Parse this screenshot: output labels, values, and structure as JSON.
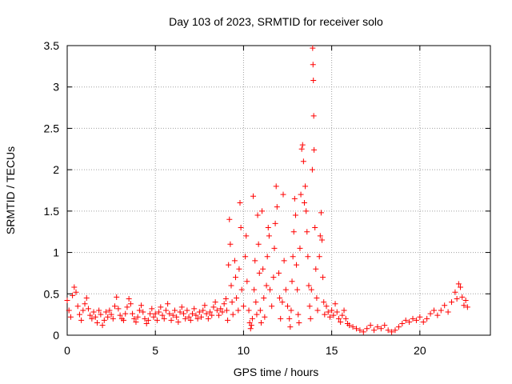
{
  "chart_data": {
    "type": "scatter",
    "title": "Day 103 of 2023, SRMTID for receiver solo",
    "xlabel": "GPS time / hours",
    "ylabel": "SRMTID / TECUs",
    "xlim": [
      0,
      24
    ],
    "ylim": [
      0,
      3.5
    ],
    "xticks": [
      0,
      5,
      10,
      15,
      20
    ],
    "xtick_labels": [
      "0",
      "5",
      "10",
      "15",
      "20"
    ],
    "yticks": [
      0,
      0.5,
      1,
      1.5,
      2,
      2.5,
      3,
      3.5
    ],
    "ytick_labels": [
      "0",
      "0.5",
      "1",
      "1.5",
      "2",
      "2.5",
      "3",
      "3.5"
    ],
    "grid": true,
    "marker": "+",
    "color": "#ff0000",
    "series": [
      {
        "name": "SRMTID",
        "points": [
          [
            0.0,
            0.42
          ],
          [
            0.1,
            0.3
          ],
          [
            0.2,
            0.22
          ],
          [
            0.3,
            0.48
          ],
          [
            0.4,
            0.58
          ],
          [
            0.5,
            0.52
          ],
          [
            0.6,
            0.35
          ],
          [
            0.7,
            0.25
          ],
          [
            0.8,
            0.18
          ],
          [
            0.9,
            0.3
          ],
          [
            1.0,
            0.38
          ],
          [
            1.1,
            0.45
          ],
          [
            1.2,
            0.32
          ],
          [
            1.3,
            0.24
          ],
          [
            1.4,
            0.2
          ],
          [
            1.5,
            0.28
          ],
          [
            1.6,
            0.22
          ],
          [
            1.7,
            0.15
          ],
          [
            1.8,
            0.3
          ],
          [
            1.9,
            0.25
          ],
          [
            2.0,
            0.12
          ],
          [
            2.1,
            0.18
          ],
          [
            2.2,
            0.28
          ],
          [
            2.3,
            0.22
          ],
          [
            2.4,
            0.3
          ],
          [
            2.5,
            0.25
          ],
          [
            2.6,
            0.2
          ],
          [
            2.7,
            0.35
          ],
          [
            2.8,
            0.46
          ],
          [
            2.9,
            0.32
          ],
          [
            3.0,
            0.24
          ],
          [
            3.1,
            0.2
          ],
          [
            3.2,
            0.18
          ],
          [
            3.3,
            0.26
          ],
          [
            3.4,
            0.34
          ],
          [
            3.5,
            0.44
          ],
          [
            3.6,
            0.38
          ],
          [
            3.7,
            0.26
          ],
          [
            3.8,
            0.2
          ],
          [
            3.9,
            0.16
          ],
          [
            4.0,
            0.22
          ],
          [
            4.1,
            0.3
          ],
          [
            4.2,
            0.36
          ],
          [
            4.3,
            0.28
          ],
          [
            4.4,
            0.2
          ],
          [
            4.5,
            0.14
          ],
          [
            4.6,
            0.18
          ],
          [
            4.7,
            0.26
          ],
          [
            4.8,
            0.32
          ],
          [
            4.9,
            0.22
          ],
          [
            5.0,
            0.26
          ],
          [
            5.1,
            0.18
          ],
          [
            5.2,
            0.28
          ],
          [
            5.3,
            0.34
          ],
          [
            5.4,
            0.24
          ],
          [
            5.5,
            0.2
          ],
          [
            5.6,
            0.3
          ],
          [
            5.7,
            0.38
          ],
          [
            5.8,
            0.26
          ],
          [
            5.9,
            0.18
          ],
          [
            6.0,
            0.24
          ],
          [
            6.1,
            0.3
          ],
          [
            6.2,
            0.22
          ],
          [
            6.3,
            0.16
          ],
          [
            6.4,
            0.28
          ],
          [
            6.5,
            0.34
          ],
          [
            6.6,
            0.26
          ],
          [
            6.7,
            0.2
          ],
          [
            6.8,
            0.3
          ],
          [
            6.9,
            0.22
          ],
          [
            7.0,
            0.18
          ],
          [
            7.1,
            0.26
          ],
          [
            7.2,
            0.32
          ],
          [
            7.3,
            0.24
          ],
          [
            7.4,
            0.2
          ],
          [
            7.5,
            0.28
          ],
          [
            7.6,
            0.22
          ],
          [
            7.7,
            0.3
          ],
          [
            7.8,
            0.36
          ],
          [
            7.9,
            0.26
          ],
          [
            8.0,
            0.2
          ],
          [
            8.1,
            0.28
          ],
          [
            8.2,
            0.24
          ],
          [
            8.3,
            0.34
          ],
          [
            8.4,
            0.4
          ],
          [
            8.5,
            0.3
          ],
          [
            8.6,
            0.24
          ],
          [
            8.7,
            0.32
          ],
          [
            8.8,
            0.28
          ],
          [
            8.9,
            0.38
          ],
          [
            9.0,
            0.44
          ],
          [
            9.05,
            0.3
          ],
          [
            9.1,
            0.18
          ],
          [
            9.15,
            0.85
          ],
          [
            9.2,
            1.4
          ],
          [
            9.25,
            1.1
          ],
          [
            9.3,
            0.6
          ],
          [
            9.35,
            0.4
          ],
          [
            9.4,
            0.25
          ],
          [
            9.5,
            0.9
          ],
          [
            9.55,
            0.7
          ],
          [
            9.6,
            0.45
          ],
          [
            9.7,
            0.3
          ],
          [
            9.75,
            0.8
          ],
          [
            9.8,
            1.6
          ],
          [
            9.85,
            1.3
          ],
          [
            9.9,
            0.55
          ],
          [
            10.0,
            0.35
          ],
          [
            10.1,
            0.95
          ],
          [
            10.15,
            1.2
          ],
          [
            10.2,
            0.65
          ],
          [
            10.3,
            0.3
          ],
          [
            10.35,
            0.15
          ],
          [
            10.4,
            0.08
          ],
          [
            10.45,
            0.12
          ],
          [
            10.5,
            0.2
          ],
          [
            10.55,
            1.68
          ],
          [
            10.6,
            0.55
          ],
          [
            10.65,
            0.9
          ],
          [
            10.7,
            0.4
          ],
          [
            10.75,
            0.25
          ],
          [
            10.8,
            1.45
          ],
          [
            10.85,
            1.1
          ],
          [
            10.9,
            0.75
          ],
          [
            10.95,
            0.3
          ],
          [
            11.0,
            0.15
          ],
          [
            11.05,
            1.5
          ],
          [
            11.1,
            0.8
          ],
          [
            11.15,
            0.45
          ],
          [
            11.2,
            0.22
          ],
          [
            11.3,
            0.6
          ],
          [
            11.35,
            0.95
          ],
          [
            11.4,
            1.3
          ],
          [
            11.45,
            1.2
          ],
          [
            11.5,
            0.55
          ],
          [
            11.6,
            0.35
          ],
          [
            11.7,
            0.7
          ],
          [
            11.75,
            1.05
          ],
          [
            11.8,
            1.35
          ],
          [
            11.85,
            1.8
          ],
          [
            11.9,
            1.55
          ],
          [
            12.0,
            0.75
          ],
          [
            12.05,
            0.45
          ],
          [
            12.1,
            0.2
          ],
          [
            12.2,
            0.4
          ],
          [
            12.25,
            1.7
          ],
          [
            12.3,
            0.9
          ],
          [
            12.4,
            0.55
          ],
          [
            12.5,
            0.35
          ],
          [
            12.6,
            0.2
          ],
          [
            12.65,
            0.1
          ],
          [
            12.7,
            0.3
          ],
          [
            12.75,
            0.65
          ],
          [
            12.8,
            0.95
          ],
          [
            12.85,
            1.25
          ],
          [
            12.9,
            1.65
          ],
          [
            12.95,
            1.45
          ],
          [
            13.0,
            0.85
          ],
          [
            13.05,
            0.55
          ],
          [
            13.1,
            0.25
          ],
          [
            13.15,
            0.15
          ],
          [
            13.2,
            1.05
          ],
          [
            13.25,
            1.7
          ],
          [
            13.3,
            2.25
          ],
          [
            13.35,
            2.3
          ],
          [
            13.4,
            2.1
          ],
          [
            13.45,
            1.6
          ],
          [
            13.5,
            1.8
          ],
          [
            13.55,
            1.5
          ],
          [
            13.6,
            1.25
          ],
          [
            13.65,
            0.95
          ],
          [
            13.7,
            0.6
          ],
          [
            13.75,
            0.35
          ],
          [
            13.8,
            0.2
          ],
          [
            13.85,
            0.55
          ],
          [
            13.9,
            2.0
          ],
          [
            13.92,
            3.47
          ],
          [
            13.94,
            3.27
          ],
          [
            13.96,
            3.08
          ],
          [
            13.98,
            2.65
          ],
          [
            14.0,
            2.24
          ],
          [
            14.05,
            1.3
          ],
          [
            14.1,
            0.8
          ],
          [
            14.15,
            0.45
          ],
          [
            14.2,
            0.3
          ],
          [
            14.3,
            0.95
          ],
          [
            14.35,
            1.2
          ],
          [
            14.4,
            1.48
          ],
          [
            14.45,
            1.15
          ],
          [
            14.5,
            0.7
          ],
          [
            14.55,
            0.4
          ],
          [
            14.6,
            0.25
          ],
          [
            14.7,
            0.35
          ],
          [
            14.8,
            0.28
          ],
          [
            14.9,
            0.22
          ],
          [
            15.0,
            0.3
          ],
          [
            15.1,
            0.24
          ],
          [
            15.2,
            0.38
          ],
          [
            15.3,
            0.28
          ],
          [
            15.4,
            0.2
          ],
          [
            15.5,
            0.16
          ],
          [
            15.6,
            0.24
          ],
          [
            15.7,
            0.3
          ],
          [
            15.8,
            0.2
          ],
          [
            15.9,
            0.14
          ],
          [
            16.0,
            0.12
          ],
          [
            16.2,
            0.1
          ],
          [
            16.4,
            0.08
          ],
          [
            16.6,
            0.06
          ],
          [
            16.8,
            0.04
          ],
          [
            17.0,
            0.08
          ],
          [
            17.2,
            0.12
          ],
          [
            17.4,
            0.06
          ],
          [
            17.6,
            0.1
          ],
          [
            17.8,
            0.08
          ],
          [
            18.0,
            0.12
          ],
          [
            18.2,
            0.06
          ],
          [
            18.4,
            0.04
          ],
          [
            18.6,
            0.06
          ],
          [
            18.8,
            0.1
          ],
          [
            19.0,
            0.14
          ],
          [
            19.2,
            0.18
          ],
          [
            19.4,
            0.16
          ],
          [
            19.6,
            0.2
          ],
          [
            19.8,
            0.18
          ],
          [
            20.0,
            0.22
          ],
          [
            20.2,
            0.16
          ],
          [
            20.4,
            0.2
          ],
          [
            20.6,
            0.26
          ],
          [
            20.8,
            0.3
          ],
          [
            21.0,
            0.24
          ],
          [
            21.2,
            0.3
          ],
          [
            21.4,
            0.36
          ],
          [
            21.6,
            0.28
          ],
          [
            21.8,
            0.4
          ],
          [
            22.0,
            0.52
          ],
          [
            22.1,
            0.44
          ],
          [
            22.2,
            0.62
          ],
          [
            22.3,
            0.58
          ],
          [
            22.4,
            0.46
          ],
          [
            22.5,
            0.36
          ],
          [
            22.6,
            0.42
          ],
          [
            22.7,
            0.34
          ]
        ]
      }
    ]
  }
}
